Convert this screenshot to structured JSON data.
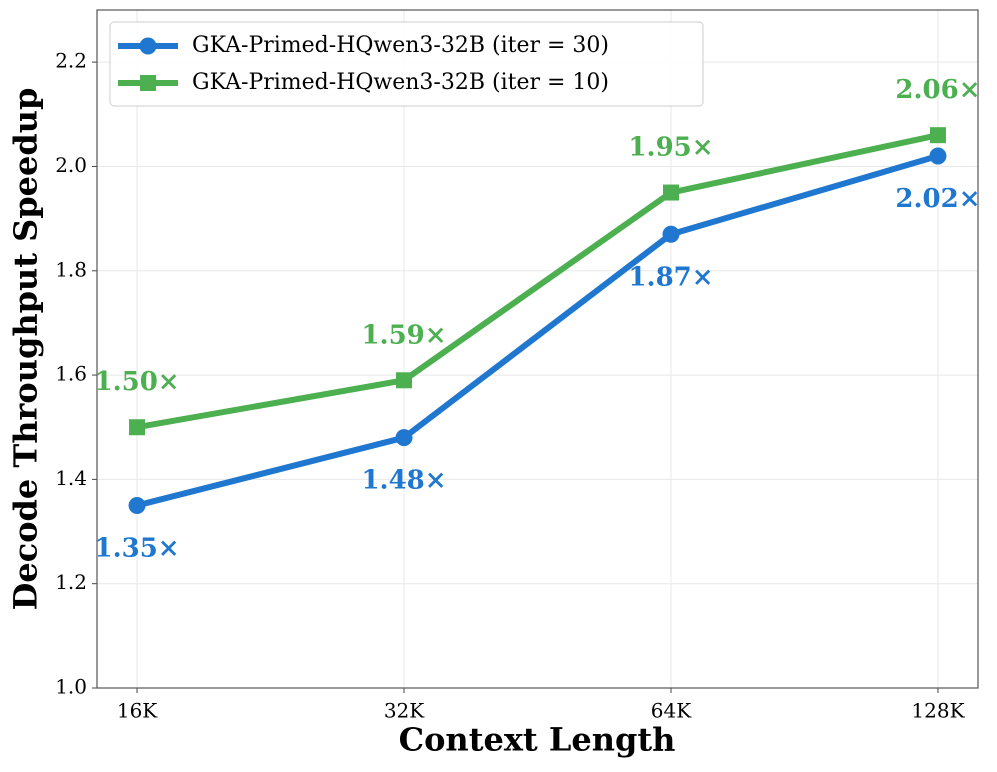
{
  "chart_data": {
    "type": "line",
    "x_label": "Context Length",
    "y_label": "Decode Throughput Speedup",
    "categories": [
      "16K",
      "32K",
      "64K",
      "128K"
    ],
    "series": [
      {
        "name": "GKA-Primed-HQwen3-32B (iter = 30)",
        "color": "#1f77d0",
        "marker": "circle",
        "label_side": "below",
        "values": [
          1.35,
          1.48,
          1.87,
          2.02
        ],
        "value_labels": [
          "1.35×",
          "1.48×",
          "1.87×",
          "2.02×"
        ]
      },
      {
        "name": "GKA-Primed-HQwen3-32B (iter = 10)",
        "color": "#4caf50",
        "marker": "square",
        "label_side": "above",
        "values": [
          1.5,
          1.59,
          1.95,
          2.06
        ],
        "value_labels": [
          "1.50×",
          "1.59×",
          "1.95×",
          "2.06×"
        ]
      }
    ],
    "ylim": [
      1.0,
      2.3
    ],
    "yticks": [
      {
        "value": 1.0,
        "label": "1.0"
      },
      1.2,
      1.4,
      1.6,
      1.8,
      {
        "value": 2.0,
        "label": "2.0"
      },
      2.2
    ],
    "grid": true,
    "legend": "upper left"
  }
}
